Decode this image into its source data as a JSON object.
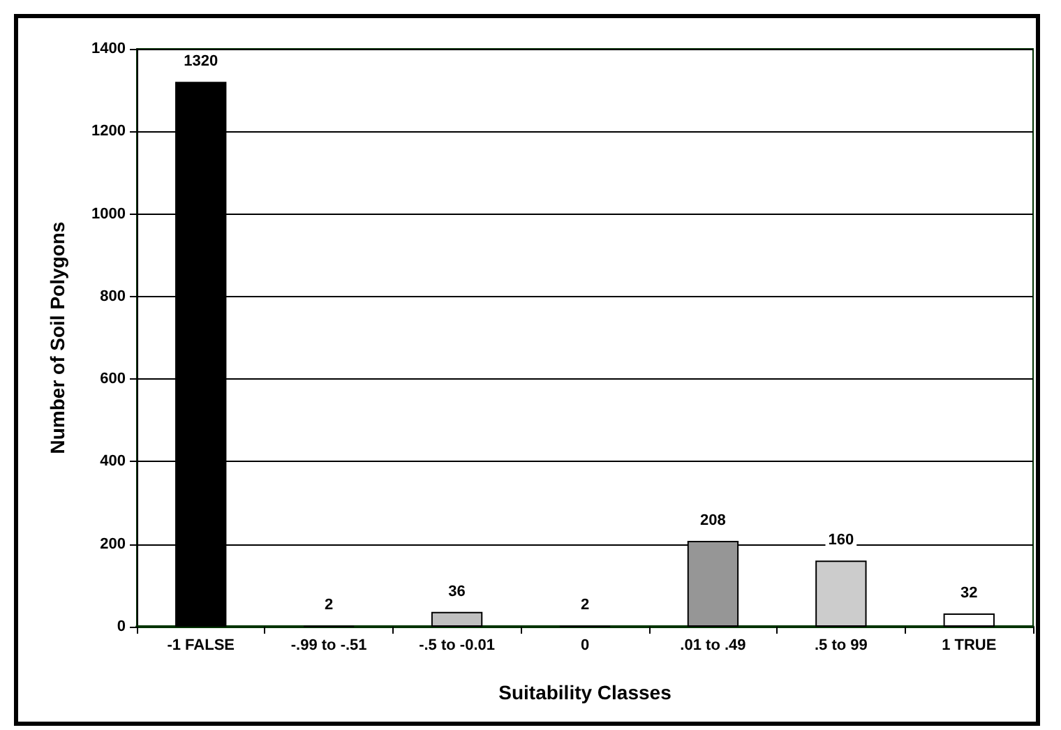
{
  "chart_data": {
    "type": "bar",
    "xlabel": "Suitability Classes",
    "ylabel": "Number of Soil Polygons",
    "categories": [
      "-1 FALSE",
      "-.99 to -.51",
      "-.5 to -0.01",
      "0",
      ".01 to .49",
      ".5 to 99",
      "1 TRUE"
    ],
    "values": [
      1320,
      2,
      36,
      2,
      208,
      160,
      32
    ],
    "colors": [
      "#000000",
      "#000000",
      "#c0c0c0",
      "#000000",
      "#969696",
      "#cccccc",
      "#ffffff"
    ],
    "ylim": [
      0,
      1400
    ],
    "yticks": [
      0,
      200,
      400,
      600,
      800,
      1000,
      1200,
      1400
    ],
    "grid": "y",
    "data_labels": true
  }
}
